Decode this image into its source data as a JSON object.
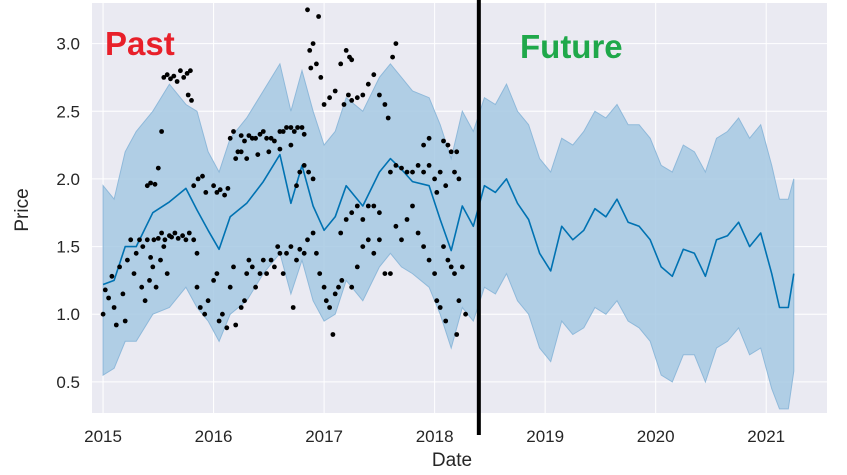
{
  "chart_data": {
    "type": "line",
    "xlabel": "Date",
    "ylabel": "Price",
    "xlim": [
      2014.9,
      2021.55
    ],
    "ylim": [
      0.27,
      3.3
    ],
    "x_ticks": [
      {
        "value": 2015,
        "label": "2015"
      },
      {
        "value": 2016,
        "label": "2016"
      },
      {
        "value": 2017,
        "label": "2017"
      },
      {
        "value": 2018,
        "label": "2018"
      },
      {
        "value": 2019,
        "label": "2019"
      },
      {
        "value": 2020,
        "label": "2020"
      },
      {
        "value": 2021,
        "label": "2021"
      }
    ],
    "y_ticks": [
      {
        "value": 0.5,
        "label": "0.5"
      },
      {
        "value": 1.0,
        "label": "1.0"
      },
      {
        "value": 1.5,
        "label": "1.5"
      },
      {
        "value": 2.0,
        "label": "2.0"
      },
      {
        "value": 2.5,
        "label": "2.5"
      },
      {
        "value": 3.0,
        "label": "3.0"
      }
    ],
    "grid": true,
    "colors": {
      "background": "#eaeaf2",
      "grid": "#ffffff",
      "forecast_line": "#0072b2",
      "uncertainty_band": "#a6c9e3",
      "observed_points": "#000000",
      "divider": "#000000",
      "past_label": "#e8202a",
      "future_label": "#1fa84a"
    },
    "annotations": [
      {
        "text": "Past",
        "color": "#e8202a"
      },
      {
        "text": "Future",
        "color": "#1fa84a"
      }
    ],
    "divider_x": 2018.4,
    "series": [
      {
        "kind": "forecast",
        "x": [
          2015.0,
          2015.1,
          2015.2,
          2015.3,
          2015.45,
          2015.6,
          2015.75,
          2015.85,
          2015.95,
          2016.05,
          2016.15,
          2016.3,
          2016.45,
          2016.6,
          2016.7,
          2016.8,
          2016.9,
          2017.0,
          2017.1,
          2017.2,
          2017.35,
          2017.5,
          2017.6,
          2017.7,
          2017.8,
          2017.95,
          2018.05,
          2018.15,
          2018.25,
          2018.35,
          2018.45,
          2018.55,
          2018.65,
          2018.75,
          2018.85,
          2018.95,
          2019.05,
          2019.15,
          2019.25,
          2019.35,
          2019.45,
          2019.55,
          2019.65,
          2019.75,
          2019.85,
          2019.95,
          2020.05,
          2020.15,
          2020.25,
          2020.35,
          2020.45,
          2020.55,
          2020.65,
          2020.75,
          2020.85,
          2020.95,
          2021.05,
          2021.12,
          2021.2,
          2021.25
        ],
        "yhat": [
          1.22,
          1.25,
          1.5,
          1.5,
          1.75,
          1.83,
          1.93,
          1.77,
          1.62,
          1.48,
          1.72,
          1.82,
          1.98,
          2.18,
          1.82,
          2.1,
          1.8,
          1.62,
          1.72,
          1.95,
          1.8,
          2.05,
          2.15,
          2.07,
          1.98,
          1.95,
          1.7,
          1.47,
          1.8,
          1.65,
          1.95,
          1.9,
          2.0,
          1.82,
          1.7,
          1.45,
          1.32,
          1.65,
          1.55,
          1.62,
          1.78,
          1.72,
          1.85,
          1.68,
          1.65,
          1.55,
          1.35,
          1.28,
          1.48,
          1.45,
          1.28,
          1.55,
          1.58,
          1.68,
          1.5,
          1.6,
          1.3,
          1.05,
          1.05,
          1.3
        ],
        "upper": [
          1.95,
          1.85,
          2.2,
          2.35,
          2.5,
          2.7,
          2.55,
          2.5,
          2.2,
          2.05,
          2.3,
          2.45,
          2.65,
          2.85,
          2.5,
          2.8,
          2.5,
          2.25,
          2.35,
          2.6,
          2.5,
          2.75,
          2.85,
          2.75,
          2.65,
          2.6,
          2.4,
          2.15,
          2.5,
          2.35,
          2.6,
          2.55,
          2.7,
          2.5,
          2.4,
          2.15,
          2.05,
          2.3,
          2.25,
          2.35,
          2.5,
          2.45,
          2.55,
          2.4,
          2.4,
          2.3,
          2.1,
          2.05,
          2.25,
          2.2,
          2.05,
          2.3,
          2.35,
          2.45,
          2.3,
          2.4,
          2.1,
          1.85,
          1.85,
          2.0
        ],
        "lower": [
          0.55,
          0.6,
          0.8,
          0.8,
          1.0,
          1.05,
          1.2,
          1.05,
          0.95,
          0.8,
          1.0,
          1.1,
          1.3,
          1.45,
          1.15,
          1.4,
          1.1,
          0.95,
          1.0,
          1.25,
          1.1,
          1.35,
          1.45,
          1.35,
          1.3,
          1.2,
          1.0,
          0.75,
          1.05,
          0.95,
          1.2,
          1.15,
          1.3,
          1.1,
          1.0,
          0.75,
          0.65,
          0.95,
          0.85,
          0.9,
          1.05,
          1.0,
          1.1,
          0.95,
          0.9,
          0.8,
          0.55,
          0.5,
          0.7,
          0.7,
          0.5,
          0.75,
          0.8,
          0.9,
          0.7,
          0.75,
          0.45,
          0.3,
          0.3,
          0.58
        ]
      },
      {
        "kind": "observed",
        "points": [
          [
            2015.0,
            1.0
          ],
          [
            2015.02,
            1.18
          ],
          [
            2015.05,
            1.12
          ],
          [
            2015.08,
            1.28
          ],
          [
            2015.1,
            1.05
          ],
          [
            2015.12,
            0.92
          ],
          [
            2015.15,
            1.35
          ],
          [
            2015.18,
            1.15
          ],
          [
            2015.2,
            0.95
          ],
          [
            2015.22,
            1.4
          ],
          [
            2015.25,
            1.55
          ],
          [
            2015.28,
            1.3
          ],
          [
            2015.3,
            1.45
          ],
          [
            2015.33,
            1.55
          ],
          [
            2015.36,
            1.5
          ],
          [
            2015.4,
            1.55
          ],
          [
            2015.43,
            1.42
          ],
          [
            2015.46,
            1.55
          ],
          [
            2015.5,
            1.56
          ],
          [
            2015.53,
            1.6
          ],
          [
            2015.56,
            1.55
          ],
          [
            2015.6,
            1.58
          ],
          [
            2015.35,
            1.2
          ],
          [
            2015.38,
            1.1
          ],
          [
            2015.42,
            1.25
          ],
          [
            2015.45,
            1.35
          ],
          [
            2015.48,
            1.2
          ],
          [
            2015.52,
            1.4
          ],
          [
            2015.55,
            1.5
          ],
          [
            2015.58,
            1.3
          ],
          [
            2015.4,
            1.95
          ],
          [
            2015.43,
            1.97
          ],
          [
            2015.47,
            1.96
          ],
          [
            2015.5,
            2.08
          ],
          [
            2015.53,
            2.35
          ],
          [
            2015.55,
            2.75
          ],
          [
            2015.58,
            2.77
          ],
          [
            2015.61,
            2.74
          ],
          [
            2015.64,
            2.76
          ],
          [
            2015.67,
            2.72
          ],
          [
            2015.7,
            2.8
          ],
          [
            2015.73,
            2.75
          ],
          [
            2015.76,
            2.78
          ],
          [
            2015.79,
            2.8
          ],
          [
            2015.77,
            2.62
          ],
          [
            2015.8,
            2.58
          ],
          [
            2015.62,
            1.57
          ],
          [
            2015.65,
            1.6
          ],
          [
            2015.68,
            1.56
          ],
          [
            2015.72,
            1.58
          ],
          [
            2015.75,
            1.55
          ],
          [
            2015.78,
            1.6
          ],
          [
            2015.82,
            1.55
          ],
          [
            2015.85,
            1.45
          ],
          [
            2015.82,
            1.95
          ],
          [
            2015.86,
            2.0
          ],
          [
            2015.9,
            2.02
          ],
          [
            2015.93,
            1.9
          ],
          [
            2015.85,
            1.2
          ],
          [
            2015.88,
            1.05
          ],
          [
            2015.92,
            1.0
          ],
          [
            2015.95,
            1.1
          ],
          [
            2016.0,
            1.95
          ],
          [
            2016.03,
            1.9
          ],
          [
            2016.06,
            1.92
          ],
          [
            2016.1,
            1.88
          ],
          [
            2016.13,
            1.93
          ],
          [
            2016.0,
            1.25
          ],
          [
            2016.03,
            1.3
          ],
          [
            2016.05,
            0.95
          ],
          [
            2016.08,
            1.0
          ],
          [
            2016.12,
            0.9
          ],
          [
            2016.15,
            1.2
          ],
          [
            2016.18,
            1.35
          ],
          [
            2016.2,
            0.92
          ],
          [
            2016.25,
            1.05
          ],
          [
            2016.28,
            1.1
          ],
          [
            2016.15,
            2.3
          ],
          [
            2016.18,
            2.35
          ],
          [
            2016.22,
            2.2
          ],
          [
            2016.25,
            2.32
          ],
          [
            2016.28,
            2.28
          ],
          [
            2016.32,
            2.32
          ],
          [
            2016.35,
            2.3
          ],
          [
            2016.38,
            2.3
          ],
          [
            2016.42,
            2.33
          ],
          [
            2016.45,
            2.35
          ],
          [
            2016.48,
            2.3
          ],
          [
            2016.52,
            2.3
          ],
          [
            2016.55,
            2.28
          ],
          [
            2016.6,
            2.35
          ],
          [
            2016.63,
            2.35
          ],
          [
            2016.66,
            2.38
          ],
          [
            2016.7,
            2.38
          ],
          [
            2016.73,
            2.35
          ],
          [
            2016.76,
            2.38
          ],
          [
            2016.8,
            2.38
          ],
          [
            2016.82,
            2.33
          ],
          [
            2016.2,
            2.15
          ],
          [
            2016.25,
            2.2
          ],
          [
            2016.3,
            2.15
          ],
          [
            2016.4,
            2.18
          ],
          [
            2016.5,
            2.2
          ],
          [
            2016.6,
            2.22
          ],
          [
            2016.7,
            2.25
          ],
          [
            2016.3,
            1.3
          ],
          [
            2016.32,
            1.4
          ],
          [
            2016.35,
            1.35
          ],
          [
            2016.38,
            1.2
          ],
          [
            2016.42,
            1.3
          ],
          [
            2016.45,
            1.4
          ],
          [
            2016.48,
            1.3
          ],
          [
            2016.52,
            1.4
          ],
          [
            2016.55,
            1.35
          ],
          [
            2016.58,
            1.5
          ],
          [
            2016.6,
            1.45
          ],
          [
            2016.63,
            1.3
          ],
          [
            2016.66,
            1.45
          ],
          [
            2016.7,
            1.5
          ],
          [
            2016.72,
            1.05
          ],
          [
            2016.75,
            1.4
          ],
          [
            2016.78,
            1.48
          ],
          [
            2016.82,
            1.45
          ],
          [
            2016.85,
            1.55
          ],
          [
            2016.85,
            3.25
          ],
          [
            2016.87,
            2.95
          ],
          [
            2016.9,
            3.0
          ],
          [
            2016.93,
            2.85
          ],
          [
            2016.95,
            3.2
          ],
          [
            2016.88,
            2.82
          ],
          [
            2016.97,
            2.75
          ],
          [
            2016.75,
            1.95
          ],
          [
            2016.78,
            2.05
          ],
          [
            2016.82,
            2.1
          ],
          [
            2016.86,
            2.05
          ],
          [
            2016.9,
            2.0
          ],
          [
            2016.9,
            1.6
          ],
          [
            2016.93,
            1.45
          ],
          [
            2016.96,
            1.3
          ],
          [
            2017.0,
            1.2
          ],
          [
            2017.02,
            1.1
          ],
          [
            2017.05,
            1.05
          ],
          [
            2017.08,
            0.85
          ],
          [
            2017.1,
            1.15
          ],
          [
            2017.13,
            1.2
          ],
          [
            2017.16,
            1.25
          ],
          [
            2017.0,
            2.55
          ],
          [
            2017.05,
            2.6
          ],
          [
            2017.1,
            2.65
          ],
          [
            2017.15,
            2.85
          ],
          [
            2017.18,
            2.55
          ],
          [
            2017.22,
            2.62
          ],
          [
            2017.25,
            2.58
          ],
          [
            2017.3,
            2.6
          ],
          [
            2017.35,
            2.62
          ],
          [
            2017.4,
            2.7
          ],
          [
            2017.45,
            2.77
          ],
          [
            2017.5,
            2.62
          ],
          [
            2017.55,
            2.55
          ],
          [
            2017.58,
            2.45
          ],
          [
            2017.62,
            2.9
          ],
          [
            2017.65,
            3.0
          ],
          [
            2017.2,
            2.95
          ],
          [
            2017.23,
            2.9
          ],
          [
            2017.25,
            2.88
          ],
          [
            2017.15,
            1.6
          ],
          [
            2017.2,
            1.7
          ],
          [
            2017.25,
            1.75
          ],
          [
            2017.3,
            1.8
          ],
          [
            2017.35,
            1.7
          ],
          [
            2017.4,
            1.8
          ],
          [
            2017.45,
            1.8
          ],
          [
            2017.5,
            1.75
          ],
          [
            2017.25,
            1.2
          ],
          [
            2017.3,
            1.35
          ],
          [
            2017.35,
            1.5
          ],
          [
            2017.4,
            1.55
          ],
          [
            2017.45,
            1.45
          ],
          [
            2017.5,
            1.55
          ],
          [
            2017.55,
            1.3
          ],
          [
            2017.6,
            1.3
          ],
          [
            2017.6,
            2.05
          ],
          [
            2017.65,
            2.1
          ],
          [
            2017.7,
            2.08
          ],
          [
            2017.75,
            2.05
          ],
          [
            2017.8,
            2.05
          ],
          [
            2017.85,
            2.1
          ],
          [
            2017.9,
            2.05
          ],
          [
            2017.95,
            2.1
          ],
          [
            2017.65,
            1.65
          ],
          [
            2017.7,
            1.55
          ],
          [
            2017.75,
            1.7
          ],
          [
            2017.8,
            1.8
          ],
          [
            2017.85,
            1.6
          ],
          [
            2017.9,
            1.5
          ],
          [
            2017.95,
            1.4
          ],
          [
            2017.9,
            2.25
          ],
          [
            2017.95,
            2.3
          ],
          [
            2018.0,
            2.0
          ],
          [
            2018.02,
            1.9
          ],
          [
            2018.05,
            2.05
          ],
          [
            2018.08,
            2.28
          ],
          [
            2018.1,
            1.95
          ],
          [
            2018.12,
            2.25
          ],
          [
            2018.15,
            2.2
          ],
          [
            2018.18,
            2.05
          ],
          [
            2018.2,
            2.2
          ],
          [
            2018.22,
            2.0
          ],
          [
            2018.0,
            1.3
          ],
          [
            2018.02,
            1.1
          ],
          [
            2018.05,
            1.05
          ],
          [
            2018.08,
            1.5
          ],
          [
            2018.1,
            0.95
          ],
          [
            2018.12,
            1.4
          ],
          [
            2018.15,
            1.35
          ],
          [
            2018.18,
            1.3
          ],
          [
            2018.2,
            0.85
          ],
          [
            2018.22,
            1.1
          ],
          [
            2018.25,
            1.35
          ],
          [
            2018.28,
            1.0
          ]
        ]
      }
    ]
  }
}
